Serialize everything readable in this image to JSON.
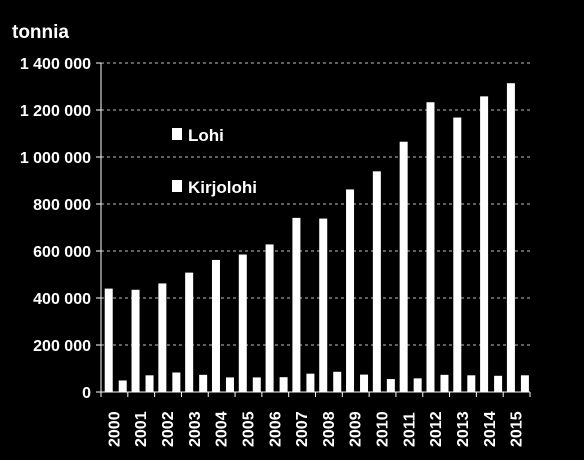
{
  "chart_data": {
    "type": "bar",
    "ylabel": "tonnia",
    "ylim": [
      0,
      1400000
    ],
    "yticks": [
      0,
      200000,
      400000,
      600000,
      800000,
      1000000,
      1200000,
      1400000
    ],
    "ytick_labels": [
      "0",
      "200 000",
      "400 000",
      "600 000",
      "800 000",
      "1 000 000",
      "1 200 000",
      "1 400 000"
    ],
    "categories": [
      "2000",
      "2001",
      "2002",
      "2003",
      "2004",
      "2005",
      "2006",
      "2007",
      "2008",
      "2009",
      "2010",
      "2011",
      "2012",
      "2013",
      "2014",
      "2015"
    ],
    "series": [
      {
        "name": "Lohi",
        "values": [
          440000,
          435000,
          462000,
          508000,
          562000,
          585000,
          628000,
          741000,
          738000,
          862000,
          939000,
          1065000,
          1233000,
          1168000,
          1258000,
          1314000
        ]
      },
      {
        "name": "Kirjolohi",
        "values": [
          49000,
          71000,
          83000,
          73000,
          62000,
          62000,
          63000,
          78000,
          86000,
          74000,
          55000,
          58000,
          73000,
          71000,
          69000,
          71000
        ]
      }
    ],
    "grid": true,
    "legend_position": "upper-left inside plot",
    "colors": {
      "background": "#000000",
      "bars": "#ffffff",
      "text": "#ffffff",
      "grid": "#bfbfbf"
    }
  }
}
